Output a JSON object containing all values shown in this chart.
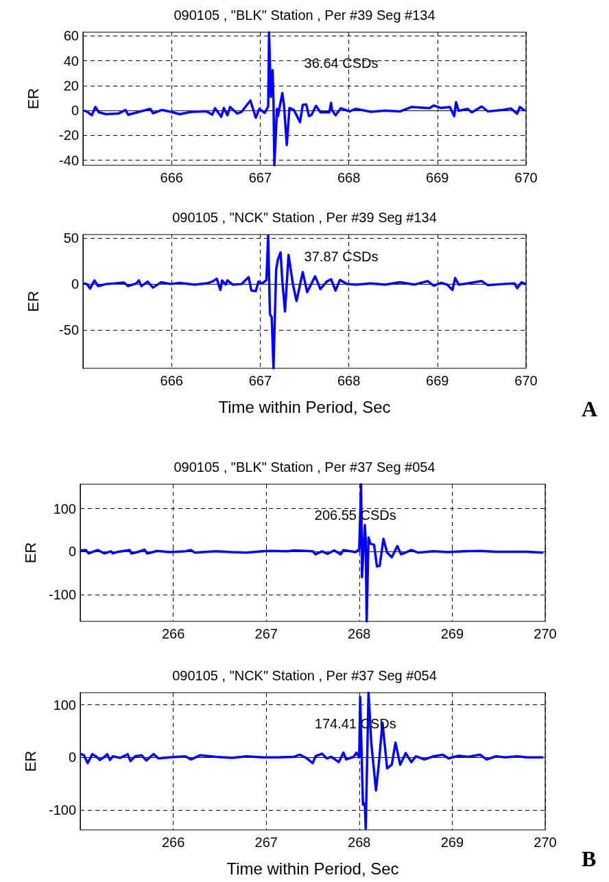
{
  "chart_data": [
    {
      "type": "line",
      "title": "090105 , \"BLK\" Station , Per #39 Seg #134",
      "ylabel": "ER",
      "annotations": [
        "36.64 CSDs"
      ],
      "xlim": [
        665,
        670
      ],
      "xticks": [
        666,
        667,
        668,
        669,
        670
      ],
      "ylim": [
        -44,
        63
      ],
      "yticks": [
        -40,
        -20,
        0,
        20,
        40,
        60
      ],
      "grid": true,
      "marker": "none",
      "line_style": "solid",
      "series": [
        {
          "color": "#0000ff",
          "x": [
            665.02,
            665.05,
            665.1,
            665.14,
            665.18,
            665.26,
            665.4,
            665.48,
            665.51,
            665.6,
            665.76,
            665.79,
            665.89,
            665.99,
            666.09,
            666.23,
            666.39,
            666.46,
            666.49,
            666.56,
            666.59,
            666.63,
            666.66,
            666.74,
            666.79,
            666.89,
            666.91,
            666.95,
            666.99,
            667.05,
            667.09,
            667.1,
            667.12,
            667.14,
            667.15,
            667.16,
            667.19,
            667.2,
            667.25,
            667.27,
            667.3,
            667.33,
            667.38,
            667.45,
            667.48,
            667.52,
            667.55,
            667.58,
            667.63,
            667.68,
            667.78,
            667.8,
            667.81,
            667.85,
            667.91,
            668.01,
            668.08,
            668.25,
            668.41,
            668.58,
            668.71,
            668.91,
            668.96,
            669.04,
            669.14,
            669.19,
            669.21,
            669.24,
            669.34,
            669.39,
            669.5,
            669.57,
            669.74,
            669.83,
            669.9,
            669.93,
            669.98
          ],
          "values": [
            -0.2,
            -1,
            -3.8,
            2.9,
            -1.4,
            -2.9,
            -2.4,
            0.5,
            -3.3,
            -1.7,
            1.4,
            -2.1,
            0.5,
            -1,
            -2.9,
            -1,
            -0.5,
            -3.3,
            1.9,
            -5,
            2.1,
            -3.8,
            2.9,
            -2.4,
            -1,
            8.1,
            3.3,
            -5.7,
            1.4,
            -1.9,
            3.3,
            63,
            11,
            32.5,
            8.1,
            -44,
            1.4,
            -4.5,
            14.1,
            3.3,
            -27.7,
            2.1,
            0.5,
            -9.3,
            4.5,
            5,
            -4.5,
            -3.3,
            3.8,
            -1.4,
            -1.4,
            6.2,
            0.5,
            -3.8,
            1.9,
            -0.7,
            1.4,
            -1,
            0,
            -0.7,
            2.9,
            1.9,
            4.1,
            2.1,
            2.9,
            -4.5,
            6.7,
            -0.2,
            1.4,
            -1.4,
            3.3,
            -0.7,
            0.5,
            1.7,
            -2.6,
            2.9,
            0.2
          ]
        }
      ]
    },
    {
      "type": "line",
      "title": "090105 , \"NCK\" Station , Per #39 Seg #134",
      "xlabel": "Time within Period, Sec",
      "ylabel": "ER",
      "annotations": [
        "37.87 CSDs",
        "A"
      ],
      "xlim": [
        665,
        670
      ],
      "xticks": [
        666,
        667,
        668,
        669,
        670
      ],
      "ylim": [
        -92,
        54
      ],
      "yticks": [
        -50,
        0,
        50
      ],
      "grid": true,
      "marker": "none",
      "line_style": "solid",
      "series": [
        {
          "color": "#0000ff",
          "x": [
            665.02,
            665.05,
            665.08,
            665.13,
            665.17,
            665.26,
            665.36,
            665.46,
            665.51,
            665.6,
            665.63,
            665.66,
            665.73,
            665.79,
            665.88,
            665.99,
            666.09,
            666.26,
            666.39,
            666.46,
            666.51,
            666.55,
            666.57,
            666.61,
            666.63,
            666.69,
            666.79,
            666.87,
            666.9,
            666.95,
            666.98,
            667.02,
            667.07,
            667.09,
            667.11,
            667.13,
            667.15,
            667.18,
            667.2,
            667.23,
            667.25,
            667.28,
            667.32,
            667.37,
            667.41,
            667.48,
            667.53,
            667.62,
            667.68,
            667.75,
            667.8,
            667.85,
            667.9,
            667.98,
            668.08,
            668.25,
            668.41,
            668.58,
            668.74,
            668.89,
            668.96,
            669.04,
            669.11,
            669.17,
            669.2,
            669.24,
            669.34,
            669.5,
            669.57,
            669.74,
            669.87,
            669.9,
            669.95,
            669.99
          ],
          "values": [
            0.6,
            -0.6,
            -4.9,
            3.9,
            -2.3,
            0,
            0.6,
            1.6,
            -2.3,
            0.6,
            3.9,
            -2.3,
            2.6,
            -3.9,
            1.9,
            0,
            1.3,
            -0.6,
            0.6,
            2.6,
            5.8,
            -6.5,
            3.9,
            -0.6,
            3.9,
            -0.6,
            0,
            7.5,
            -7.1,
            -7.8,
            2.6,
            0.6,
            4.2,
            52.9,
            -33,
            -36.4,
            -92,
            15.6,
            26.9,
            34.4,
            2.6,
            -29.9,
            31.8,
            -0.6,
            -18.5,
            13,
            -8.8,
            8.4,
            -5.5,
            2.6,
            5.2,
            -7.1,
            4.5,
            0,
            -0.6,
            0.6,
            -0.6,
            1.9,
            -0.6,
            3.2,
            -1.9,
            1.3,
            -0.6,
            -6.5,
            6.5,
            -0.6,
            0.6,
            3.2,
            -1.3,
            0,
            0.6,
            -4.5,
            1.9,
            0
          ]
        }
      ]
    },
    {
      "type": "line",
      "title": "090105 , \"BLK\" Station , Per #37 Seg #054",
      "ylabel": "ER",
      "annotations": [
        "206.55 CSDs"
      ],
      "xlim": [
        265,
        270
      ],
      "xticks": [
        266,
        267,
        268,
        269,
        270
      ],
      "ylim": [
        -162,
        157
      ],
      "yticks": [
        -100,
        0,
        100
      ],
      "grid": true,
      "marker": "none",
      "line_style": "solid",
      "series": [
        {
          "color": "#0000ff",
          "x": [
            265.01,
            265.06,
            265.09,
            265.19,
            265.26,
            265.33,
            265.35,
            265.39,
            265.53,
            265.55,
            265.63,
            265.69,
            265.72,
            265.83,
            265.96,
            266.13,
            266.19,
            266.23,
            266.46,
            266.63,
            266.79,
            266.96,
            267.06,
            267.23,
            267.3,
            267.5,
            267.53,
            267.6,
            267.66,
            267.73,
            267.8,
            267.83,
            267.96,
            268.0,
            268.02,
            268.03,
            268.06,
            268.07,
            268.08,
            268.1,
            268.12,
            268.16,
            268.19,
            268.22,
            268.26,
            268.3,
            268.35,
            268.41,
            268.45,
            268.5,
            268.56,
            268.63,
            268.8,
            268.96,
            269.13,
            269.3,
            269.47,
            269.8,
            269.97
          ],
          "values": [
            3,
            4,
            -4,
            4,
            -4,
            1,
            -4,
            -1,
            4,
            -4,
            0,
            5,
            -4,
            2,
            -1,
            1,
            4,
            -2,
            1,
            -1,
            -2,
            1,
            2,
            1,
            3,
            1,
            -6,
            1,
            -5,
            3,
            -6,
            4,
            -1,
            6,
            157,
            -59,
            62,
            26,
            -162,
            33,
            19,
            16,
            -34,
            -33,
            30,
            -2,
            -13,
            13,
            -6,
            -2,
            4,
            -2,
            1,
            -1,
            1,
            2,
            0,
            0,
            -2
          ]
        }
      ]
    },
    {
      "type": "line",
      "title": "090105 , \"NCK\" Station , Per #37 Seg #054",
      "xlabel": "Time within Period, Sec",
      "ylabel": "ER",
      "annotations": [
        "174.41 CSDs",
        "B"
      ],
      "xlim": [
        265,
        270
      ],
      "xticks": [
        266,
        267,
        268,
        269,
        270
      ],
      "ylim": [
        -138,
        123
      ],
      "yticks": [
        -100,
        0,
        100
      ],
      "grid": true,
      "marker": "none",
      "line_style": "solid",
      "series": [
        {
          "color": "#0000ff",
          "x": [
            265.01,
            265.04,
            265.08,
            265.13,
            265.17,
            265.21,
            265.26,
            265.29,
            265.32,
            265.35,
            265.43,
            265.49,
            265.51,
            265.54,
            265.59,
            265.66,
            265.71,
            265.76,
            265.79,
            265.84,
            265.96,
            266.13,
            266.19,
            266.29,
            266.46,
            266.63,
            266.79,
            266.96,
            267.13,
            267.3,
            267.36,
            267.43,
            267.5,
            267.53,
            267.6,
            267.65,
            267.7,
            267.78,
            267.83,
            267.86,
            267.94,
            267.97,
            268.0,
            268.01,
            268.04,
            268.06,
            268.07,
            268.1,
            268.13,
            268.18,
            268.21,
            268.25,
            268.3,
            268.35,
            268.39,
            268.44,
            268.5,
            268.56,
            268.61,
            268.7,
            268.8,
            268.9,
            268.96,
            269.07,
            269.17,
            269.3,
            269.37,
            269.47,
            269.57,
            269.7,
            269.8,
            269.97
          ],
          "values": [
            6,
            4,
            -11,
            6,
            2,
            -5,
            1,
            6,
            -5,
            2,
            -1,
            4,
            6,
            -7,
            2,
            4,
            -6,
            2,
            6,
            -2,
            0,
            2,
            -4,
            4,
            1,
            -1,
            2,
            0,
            0,
            1,
            5,
            -1,
            -11,
            2,
            7,
            -2,
            1,
            -9,
            9,
            -4,
            1,
            9,
            0,
            115,
            -90,
            -88,
            -136,
            123,
            27,
            -63,
            -14,
            66,
            -21,
            -14,
            28,
            -14,
            8,
            -9,
            2,
            -4,
            2,
            5,
            -2,
            3,
            1,
            5,
            -4,
            2,
            0,
            2,
            0,
            0
          ]
        }
      ]
    }
  ]
}
